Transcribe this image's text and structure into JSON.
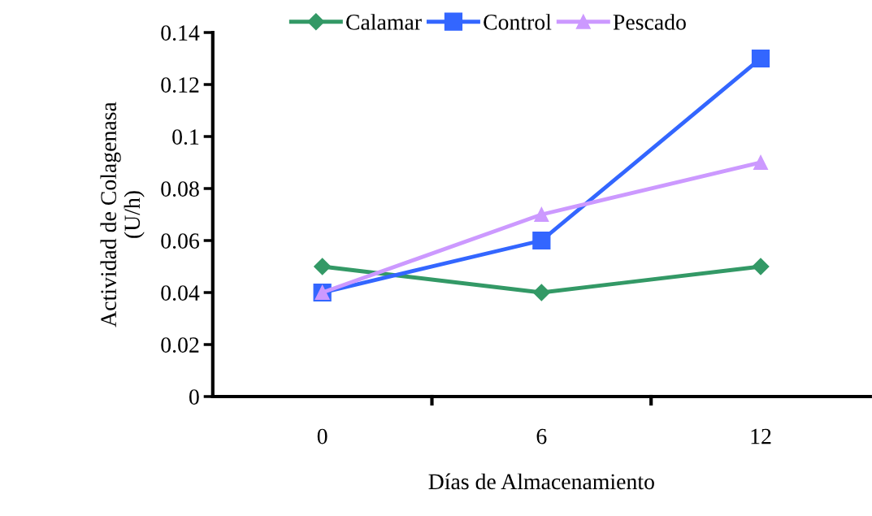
{
  "chart_data": {
    "type": "line",
    "xlabel": "Días de Almacenamiento",
    "ylabel": "Actividad de Colagenasa\n(U/h)",
    "categories": [
      "0",
      "6",
      "12"
    ],
    "series": [
      {
        "name": "Calamar",
        "color": "#339966",
        "marker": "diamond",
        "values": [
          0.05,
          0.04,
          0.05
        ]
      },
      {
        "name": "Control",
        "color": "#3366ff",
        "marker": "square",
        "values": [
          0.04,
          0.06,
          0.13
        ]
      },
      {
        "name": "Pescado",
        "color": "#cc99ff",
        "marker": "triangle",
        "values": [
          0.04,
          0.07,
          0.09
        ]
      }
    ],
    "ylim": [
      0,
      0.14
    ],
    "yticks": [
      {
        "value": 0,
        "label": "0"
      },
      0.02,
      0.04,
      0.06,
      0.08,
      {
        "value": 0.1,
        "label": "0.1"
      },
      0.12,
      0.14
    ],
    "grid": false,
    "legend": "top",
    "line_style": "solid"
  }
}
